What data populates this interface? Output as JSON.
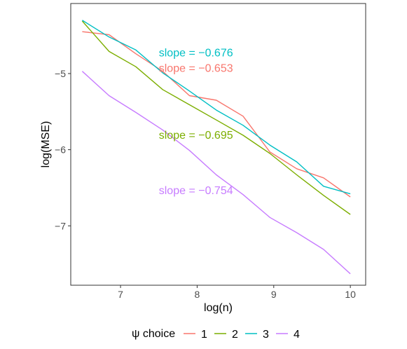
{
  "chart_data": {
    "type": "line",
    "xlabel": "log(n)",
    "ylabel": "log(MSE)",
    "xlim": [
      6.35,
      10.2
    ],
    "ylim": [
      -7.78,
      -4.08
    ],
    "x_ticks": [
      7,
      8,
      9,
      10
    ],
    "x_tick_labels": [
      "7",
      "8",
      "9",
      "10"
    ],
    "y_ticks": [
      -5,
      -6,
      -7
    ],
    "y_tick_labels": [
      "−5",
      "−6",
      "−7"
    ],
    "grid": false,
    "legend": {
      "title": "ψ choice",
      "position": "bottom",
      "entries": [
        "1",
        "2",
        "3",
        "4"
      ]
    },
    "series": [
      {
        "name": "1",
        "color": "#F8766D",
        "x": [
          6.5,
          6.85,
          7.2,
          7.55,
          7.9,
          8.25,
          8.6,
          8.95,
          9.3,
          9.65,
          10.0
        ],
        "y": [
          -4.45,
          -4.49,
          -4.74,
          -4.97,
          -5.29,
          -5.35,
          -5.56,
          -6.03,
          -6.25,
          -6.37,
          -6.62
        ]
      },
      {
        "name": "2",
        "color": "#7CAE00",
        "x": [
          6.5,
          6.85,
          7.2,
          7.55,
          7.9,
          8.25,
          8.6,
          8.95,
          9.3,
          9.65,
          10.0
        ],
        "y": [
          -4.31,
          -4.71,
          -4.91,
          -5.21,
          -5.41,
          -5.61,
          -5.81,
          -6.05,
          -6.33,
          -6.6,
          -6.85
        ]
      },
      {
        "name": "3",
        "color": "#00BFC4",
        "x": [
          6.5,
          6.85,
          7.2,
          7.55,
          7.9,
          8.25,
          8.6,
          8.95,
          9.3,
          9.65,
          10.0
        ],
        "y": [
          -4.3,
          -4.52,
          -4.69,
          -4.99,
          -5.23,
          -5.48,
          -5.68,
          -5.94,
          -6.16,
          -6.48,
          -6.58
        ]
      },
      {
        "name": "4",
        "color": "#C77CFF",
        "x": [
          6.5,
          6.85,
          7.2,
          7.55,
          7.9,
          8.25,
          8.6,
          8.95,
          9.3,
          9.65,
          10.0
        ],
        "y": [
          -4.97,
          -5.29,
          -5.51,
          -5.74,
          -6.01,
          -6.33,
          -6.59,
          -6.89,
          -7.09,
          -7.31,
          -7.63
        ]
      }
    ],
    "annotations": [
      {
        "text": "slope = −0.676",
        "series": "3",
        "x": 7.5,
        "y": -4.72
      },
      {
        "text": "slope = −0.653",
        "series": "1",
        "x": 7.5,
        "y": -4.92
      },
      {
        "text": "slope = −0.695",
        "series": "2",
        "x": 7.5,
        "y": -5.8
      },
      {
        "text": "slope = −0.754",
        "series": "4",
        "x": 7.5,
        "y": -6.53
      }
    ]
  }
}
